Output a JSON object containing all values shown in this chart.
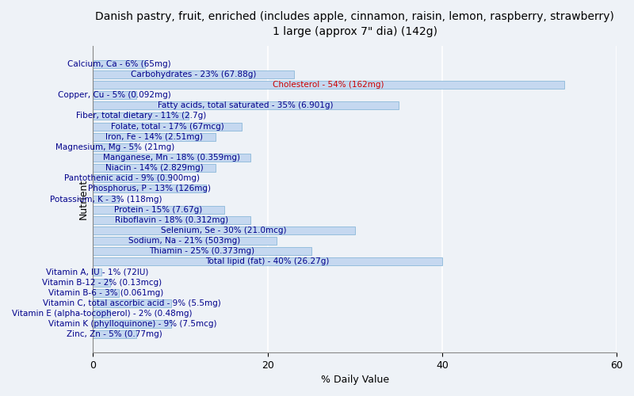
{
  "title": "Danish pastry, fruit, enriched (includes apple, cinnamon, raisin, lemon, raspberry, strawberry)\n1 large (approx 7\" dia) (142g)",
  "xlabel": "% Daily Value",
  "ylabel": "Nutrient",
  "xlim": [
    0,
    60
  ],
  "xticks": [
    0,
    20,
    40,
    60
  ],
  "background_color": "#eef2f7",
  "bar_color": "#c5d8f0",
  "bar_edge_color": "#7bafd4",
  "nutrients": [
    {
      "label": "Calcium, Ca - 6% (65mg)",
      "value": 6
    },
    {
      "label": "Carbohydrates - 23% (67.88g)",
      "value": 23
    },
    {
      "label": "Cholesterol - 54% (162mg)",
      "value": 54
    },
    {
      "label": "Copper, Cu - 5% (0.092mg)",
      "value": 5
    },
    {
      "label": "Fatty acids, total saturated - 35% (6.901g)",
      "value": 35
    },
    {
      "label": "Fiber, total dietary - 11% (2.7g)",
      "value": 11
    },
    {
      "label": "Folate, total - 17% (67mcg)",
      "value": 17
    },
    {
      "label": "Iron, Fe - 14% (2.51mg)",
      "value": 14
    },
    {
      "label": "Magnesium, Mg - 5% (21mg)",
      "value": 5
    },
    {
      "label": "Manganese, Mn - 18% (0.359mg)",
      "value": 18
    },
    {
      "label": "Niacin - 14% (2.829mg)",
      "value": 14
    },
    {
      "label": "Pantothenic acid - 9% (0.900mg)",
      "value": 9
    },
    {
      "label": "Phosphorus, P - 13% (126mg)",
      "value": 13
    },
    {
      "label": "Potassium, K - 3% (118mg)",
      "value": 3
    },
    {
      "label": "Protein - 15% (7.67g)",
      "value": 15
    },
    {
      "label": "Riboflavin - 18% (0.312mg)",
      "value": 18
    },
    {
      "label": "Selenium, Se - 30% (21.0mcg)",
      "value": 30
    },
    {
      "label": "Sodium, Na - 21% (503mg)",
      "value": 21
    },
    {
      "label": "Thiamin - 25% (0.373mg)",
      "value": 25
    },
    {
      "label": "Total lipid (fat) - 40% (26.27g)",
      "value": 40
    },
    {
      "label": "Vitamin A, IU - 1% (72IU)",
      "value": 1
    },
    {
      "label": "Vitamin B-12 - 2% (0.13mcg)",
      "value": 2
    },
    {
      "label": "Vitamin B-6 - 3% (0.061mg)",
      "value": 3
    },
    {
      "label": "Vitamin C, total ascorbic acid - 9% (5.5mg)",
      "value": 9
    },
    {
      "label": "Vitamin E (alpha-tocopherol) - 2% (0.48mg)",
      "value": 2
    },
    {
      "label": "Vitamin K (phylloquinone) - 9% (7.5mcg)",
      "value": 9
    },
    {
      "label": "Zinc, Zn - 5% (0.77mg)",
      "value": 5
    }
  ],
  "title_fontsize": 10,
  "axis_label_fontsize": 9,
  "bar_label_fontsize": 7.5,
  "tick_fontsize": 9,
  "highlight_label": "Cholesterol - 54% (162mg)",
  "highlight_text_color": "#cc0000",
  "normal_text_color": "#00008b",
  "fig_width": 8.0,
  "fig_height": 5.0
}
